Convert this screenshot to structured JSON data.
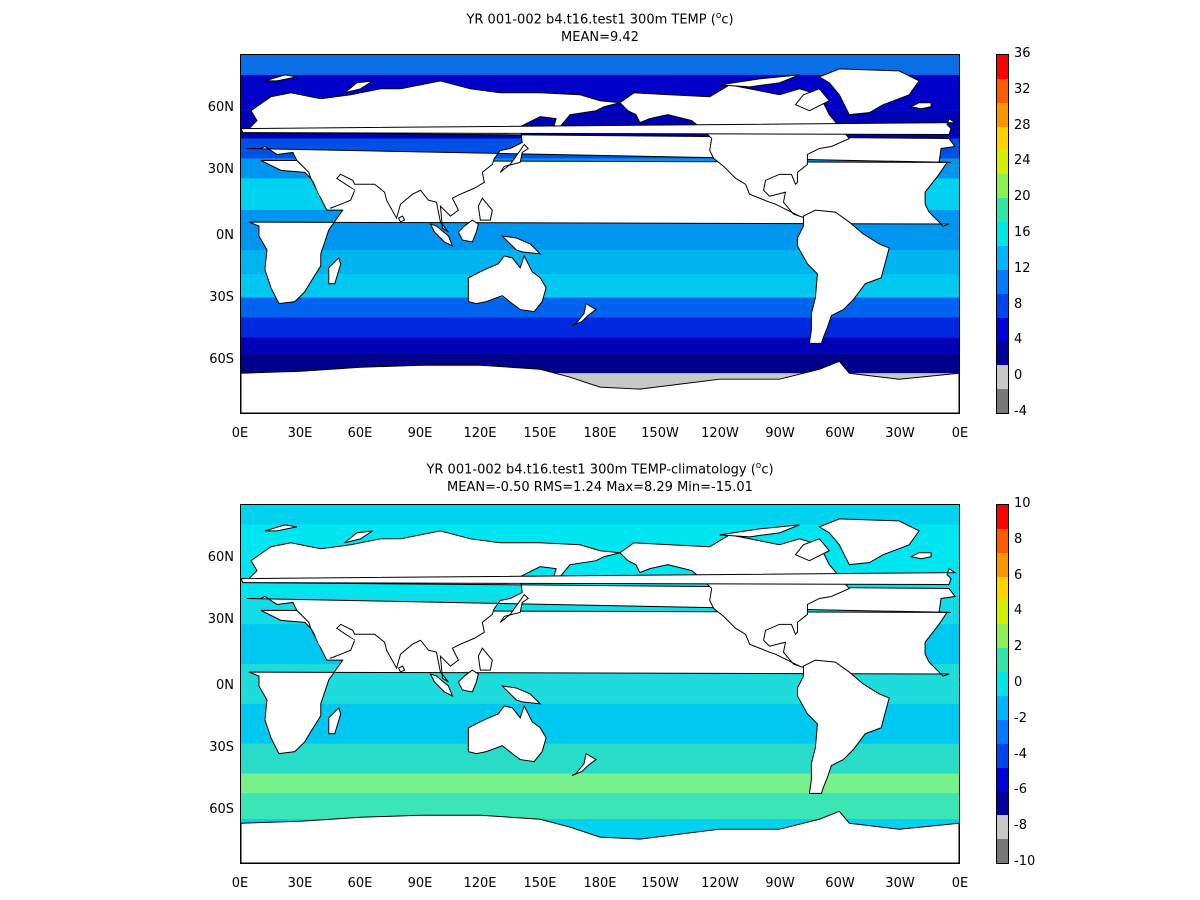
{
  "panels": [
    {
      "title": "YR 001-002 b4.t16.test1 300m TEMP (",
      "title_sup": "o",
      "title_end": "c)",
      "stats": "MEAN=9.42",
      "colorbar": {
        "labels": [
          "36",
          "32",
          "28",
          "24",
          "20",
          "16",
          "12",
          "8",
          "4",
          "0",
          "-4"
        ],
        "colors": [
          "#ff0000",
          "#ff5a00",
          "#ff9600",
          "#ffd200",
          "#d2f000",
          "#8cf050",
          "#32e6aa",
          "#00e6e6",
          "#00b4ff",
          "#0078ff",
          "#0046f0",
          "#0000dc",
          "#0000a0",
          "#c8c8c8",
          "#787878"
        ]
      },
      "ocean_color": "#0a6ee6",
      "bands": [
        {
          "lat": 80,
          "color": "#0000c8"
        },
        {
          "lat": 62,
          "color": "#0000b4"
        },
        {
          "lat": 48,
          "color": "#0050e6"
        },
        {
          "lat": 38,
          "color": "#0096f0"
        },
        {
          "lat": 28,
          "color": "#00d2f0"
        },
        {
          "lat": 12,
          "color": "#0096f0"
        },
        {
          "lat": -8,
          "color": "#00b4f0"
        },
        {
          "lat": -20,
          "color": "#00c8f0"
        },
        {
          "lat": -32,
          "color": "#0064f0"
        },
        {
          "lat": -42,
          "color": "#0028dc"
        },
        {
          "lat": -52,
          "color": "#0000b4"
        },
        {
          "lat": -60,
          "color": "#00008c"
        },
        {
          "lat": -70,
          "color": "#c8c8c8"
        }
      ]
    },
    {
      "title": "YR 001-002 b4.t16.test1 300m TEMP-climatology (",
      "title_sup": "o",
      "title_end": "c)",
      "stats": "MEAN=-0.50   RMS=1.24   Max=8.29   Min=-15.01",
      "colorbar": {
        "labels": [
          "10",
          "8",
          "6",
          "4",
          "2",
          "0",
          "-2",
          "-4",
          "-6",
          "-8",
          "-10"
        ],
        "colors": [
          "#ff0000",
          "#ff5a00",
          "#ff9600",
          "#ffd200",
          "#d2f000",
          "#8cf050",
          "#32e6aa",
          "#00e6e6",
          "#00b4ff",
          "#0078ff",
          "#0046f0",
          "#0000dc",
          "#0000a0",
          "#c8c8c8",
          "#787878"
        ]
      },
      "ocean_color": "#00d2f0",
      "bands": [
        {
          "lat": 80,
          "color": "#00e6f0"
        },
        {
          "lat": 45,
          "color": "#14dce6"
        },
        {
          "lat": 30,
          "color": "#00c8f0"
        },
        {
          "lat": 10,
          "color": "#1edcdc"
        },
        {
          "lat": -10,
          "color": "#00c8f0"
        },
        {
          "lat": -30,
          "color": "#28dcc8"
        },
        {
          "lat": -45,
          "color": "#78f08c"
        },
        {
          "lat": -55,
          "color": "#3ce6b4"
        },
        {
          "lat": -68,
          "color": "#00d2f0"
        }
      ]
    }
  ],
  "lat_labels": [
    "60N",
    "30N",
    "0N",
    "30S",
    "60S"
  ],
  "lon_labels": [
    "0E",
    "30E",
    "60E",
    "90E",
    "120E",
    "150E",
    "180E",
    "150W",
    "120W",
    "90W",
    "60W",
    "30W",
    "0E"
  ]
}
